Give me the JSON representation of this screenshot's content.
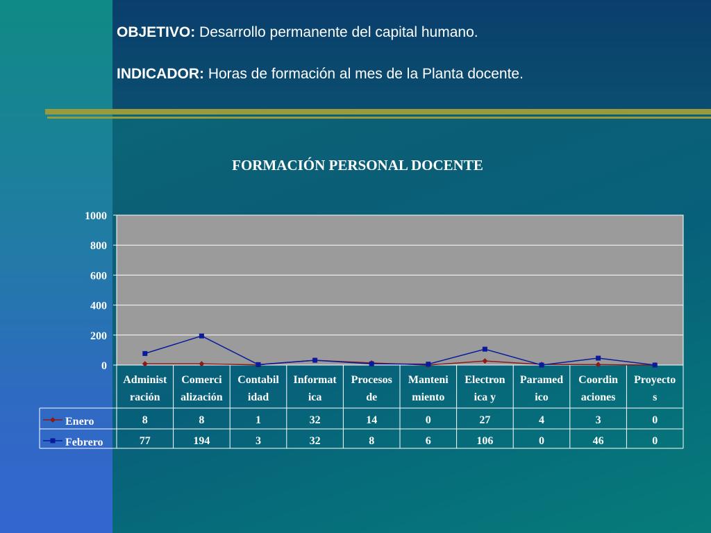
{
  "header": {
    "objective_label": "OBJETIVO:",
    "objective_text": " Desarrollo permanente del capital humano.",
    "indicator_label": "INDICADOR:",
    "indicator_text": " Horas de formación al mes de la Planta docente."
  },
  "colors": {
    "enero": "#8b1a1a",
    "febrero": "#0a1a9a",
    "plot_bg": "#9b9b9b",
    "rule": "#9a9a3a"
  },
  "chart_data": {
    "type": "line",
    "title": "FORMACIÓN PERSONAL DOCENTE",
    "ylim": [
      0,
      1000
    ],
    "yticks": [
      "0",
      "200",
      "400",
      "600",
      "800",
      "1000"
    ],
    "grid": true,
    "categories": [
      [
        "Administ",
        "ración"
      ],
      [
        "Comerci",
        "alización"
      ],
      [
        "Contabil",
        "idad"
      ],
      [
        "Informat",
        "ica"
      ],
      [
        "Procesos",
        "de"
      ],
      [
        "Manteni",
        "miento"
      ],
      [
        "Electron",
        "ica y"
      ],
      [
        "Paramed",
        "ico"
      ],
      [
        "Coordin",
        "aciones"
      ],
      [
        "Proyecto",
        "s"
      ]
    ],
    "series": [
      {
        "name": "Enero",
        "marker": "diamond",
        "values": [
          8,
          8,
          1,
          32,
          14,
          0,
          27,
          4,
          3,
          0
        ]
      },
      {
        "name": "Febrero",
        "marker": "square",
        "values": [
          77,
          194,
          3,
          32,
          8,
          6,
          106,
          0,
          46,
          0
        ]
      }
    ]
  }
}
